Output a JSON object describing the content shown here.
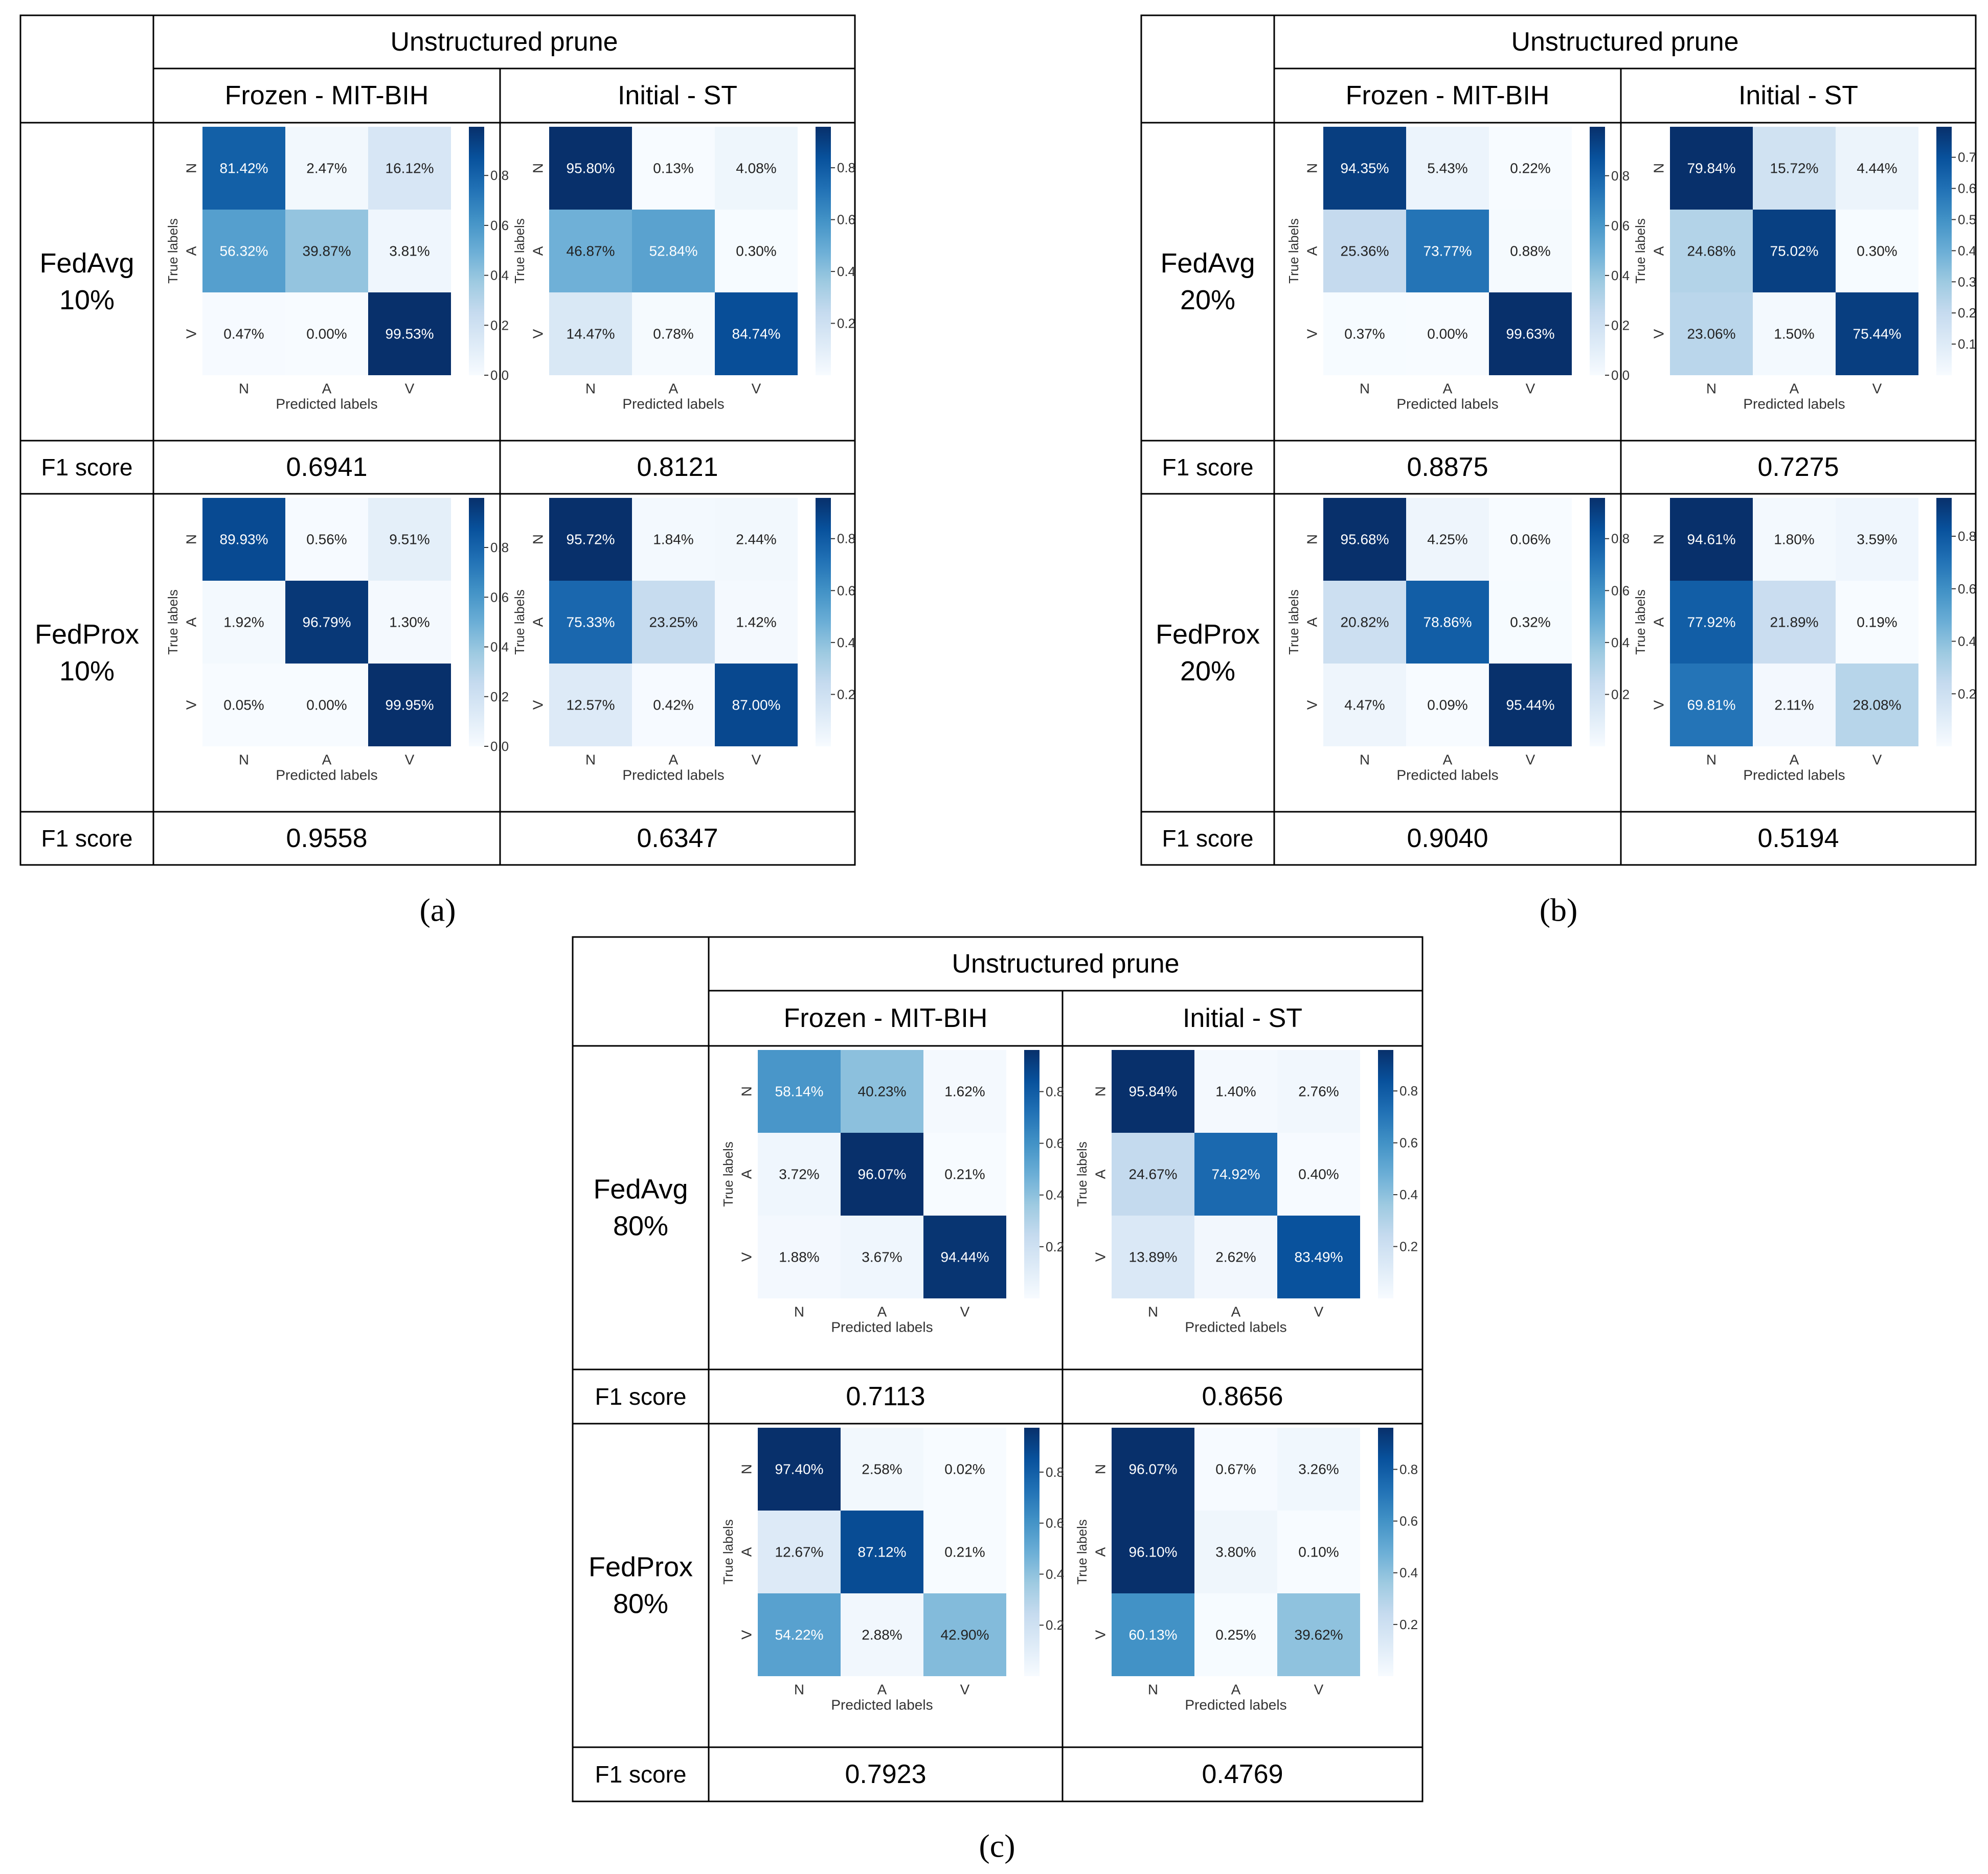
{
  "figure": {
    "panels": [
      {
        "tag": "(a)",
        "header": "Unstructured prune",
        "columns": [
          "Frozen - MIT-BIH",
          "Initial - ST"
        ],
        "f1_label": "F1 score",
        "rows": [
          {
            "label": [
              "FedAvg",
              "10%"
            ],
            "f1": [
              "0.6941",
              "0.8121"
            ]
          },
          {
            "label": [
              "FedProx",
              "10%"
            ],
            "f1": [
              "0.9558",
              "0.6347"
            ]
          }
        ]
      },
      {
        "tag": "(b)",
        "header": "Unstructured prune",
        "columns": [
          "Frozen - MIT-BIH",
          "Initial - ST"
        ],
        "f1_label": "F1 score",
        "rows": [
          {
            "label": [
              "FedAvg",
              "20%"
            ],
            "f1": [
              "0.8875",
              "0.7275"
            ]
          },
          {
            "label": [
              "FedProx",
              "20%"
            ],
            "f1": [
              "0.9040",
              "0.5194"
            ]
          }
        ]
      },
      {
        "tag": "(c)",
        "header": "Unstructured prune",
        "columns": [
          "Frozen - MIT-BIH",
          "Initial - ST"
        ],
        "f1_label": "F1 score",
        "rows": [
          {
            "label": [
              "FedAvg",
              "80%"
            ],
            "f1": [
              "0.7113",
              "0.8656"
            ]
          },
          {
            "label": [
              "FedProx",
              "80%"
            ],
            "f1": [
              "0.7923",
              "0.4769"
            ]
          }
        ]
      }
    ]
  },
  "chart_data": [
    {
      "type": "heatmap",
      "panel": "(a)",
      "model": "FedAvg 10%",
      "column": "Frozen - MIT-BIH",
      "xlabel": "Predicted labels",
      "ylabel": "True labels",
      "classes": [
        "N",
        "A",
        "V"
      ],
      "values": [
        [
          81.42,
          2.47,
          16.12
        ],
        [
          56.32,
          39.87,
          3.81
        ],
        [
          0.47,
          0.0,
          99.53
        ]
      ],
      "labels": [
        [
          "81.42%",
          "2.47%",
          "16.12%"
        ],
        [
          "56.32%",
          "39.87%",
          "3.81%"
        ],
        [
          "0.47%",
          "0.00%",
          "99.53%"
        ]
      ],
      "vmax": 0.995,
      "ticks": [
        0.0,
        0.2,
        0.4,
        0.6,
        0.8
      ],
      "tick_labels": [
        "0.0",
        "0.2",
        "0.4",
        "0.6",
        "0.8"
      ]
    },
    {
      "type": "heatmap",
      "panel": "(a)",
      "model": "FedAvg 10%",
      "column": "Initial - ST",
      "xlabel": "Predicted labels",
      "ylabel": "True labels",
      "classes": [
        "N",
        "A",
        "V"
      ],
      "values": [
        [
          95.8,
          0.13,
          4.08
        ],
        [
          46.87,
          52.84,
          0.3
        ],
        [
          14.47,
          0.78,
          84.74
        ]
      ],
      "labels": [
        [
          "95.80%",
          "0.13%",
          "4.08%"
        ],
        [
          "46.87%",
          "52.84%",
          "0.30%"
        ],
        [
          "14.47%",
          "0.78%",
          "84.74%"
        ]
      ],
      "vmax": 0.958,
      "ticks": [
        0.2,
        0.4,
        0.6,
        0.8
      ],
      "tick_labels": [
        "0.2",
        "0.4",
        "0.6",
        "0.8"
      ]
    },
    {
      "type": "heatmap",
      "panel": "(a)",
      "model": "FedProx 10%",
      "column": "Frozen - MIT-BIH",
      "xlabel": "Predicted labels",
      "ylabel": "True labels",
      "classes": [
        "N",
        "A",
        "V"
      ],
      "values": [
        [
          89.93,
          0.56,
          9.51
        ],
        [
          1.92,
          96.79,
          1.3
        ],
        [
          0.05,
          0.0,
          99.95
        ]
      ],
      "labels": [
        [
          "89.93%",
          "0.56%",
          "9.51%"
        ],
        [
          "1.92%",
          "96.79%",
          "1.30%"
        ],
        [
          "0.05%",
          "0.00%",
          "99.95%"
        ]
      ],
      "vmax": 0.9995,
      "ticks": [
        0.0,
        0.2,
        0.4,
        0.6,
        0.8
      ],
      "tick_labels": [
        "0.0",
        "0.2",
        "0.4",
        "0.6",
        "0.8"
      ]
    },
    {
      "type": "heatmap",
      "panel": "(a)",
      "model": "FedProx 10%",
      "column": "Initial - ST",
      "xlabel": "Predicted labels",
      "ylabel": "True labels",
      "classes": [
        "N",
        "A",
        "V"
      ],
      "values": [
        [
          95.72,
          1.84,
          2.44
        ],
        [
          75.33,
          23.25,
          1.42
        ],
        [
          12.57,
          0.42,
          87.0
        ]
      ],
      "labels": [
        [
          "95.72%",
          "1.84%",
          "2.44%"
        ],
        [
          "75.33%",
          "23.25%",
          "1.42%"
        ],
        [
          "12.57%",
          "0.42%",
          "87.00%"
        ]
      ],
      "vmax": 0.957,
      "ticks": [
        0.2,
        0.4,
        0.6,
        0.8
      ],
      "tick_labels": [
        "0.2",
        "0.4",
        "0.6",
        "0.8"
      ]
    },
    {
      "type": "heatmap",
      "panel": "(b)",
      "model": "FedAvg 20%",
      "column": "Frozen - MIT-BIH",
      "xlabel": "Predicted labels",
      "ylabel": "True labels",
      "classes": [
        "N",
        "A",
        "V"
      ],
      "values": [
        [
          94.35,
          5.43,
          0.22
        ],
        [
          25.36,
          73.77,
          0.88
        ],
        [
          0.37,
          0.0,
          99.63
        ]
      ],
      "labels": [
        [
          "94.35%",
          "5.43%",
          "0.22%"
        ],
        [
          "25.36%",
          "73.77%",
          "0.88%"
        ],
        [
          "0.37%",
          "0.00%",
          "99.63%"
        ]
      ],
      "vmax": 0.9963,
      "ticks": [
        0.0,
        0.2,
        0.4,
        0.6,
        0.8
      ],
      "tick_labels": [
        "0.0",
        "0.2",
        "0.4",
        "0.6",
        "0.8"
      ]
    },
    {
      "type": "heatmap",
      "panel": "(b)",
      "model": "FedAvg 20%",
      "column": "Initial - ST",
      "xlabel": "Predicted labels",
      "ylabel": "True labels",
      "classes": [
        "N",
        "A",
        "V"
      ],
      "values": [
        [
          79.84,
          15.72,
          4.44
        ],
        [
          24.68,
          75.02,
          0.3
        ],
        [
          23.06,
          1.5,
          75.44
        ]
      ],
      "labels": [
        [
          "79.84%",
          "15.72%",
          "4.44%"
        ],
        [
          "24.68%",
          "75.02%",
          "0.30%"
        ],
        [
          "23.06%",
          "1.50%",
          "75.44%"
        ]
      ],
      "vmax": 0.798,
      "ticks": [
        0.1,
        0.2,
        0.3,
        0.4,
        0.5,
        0.6,
        0.7
      ],
      "tick_labels": [
        "0.1",
        "0.2",
        "0.3",
        "0.4",
        "0.5",
        "0.6",
        "0.7"
      ]
    },
    {
      "type": "heatmap",
      "panel": "(b)",
      "model": "FedProx 20%",
      "column": "Frozen - MIT-BIH",
      "xlabel": "Predicted labels",
      "ylabel": "True labels",
      "classes": [
        "N",
        "A",
        "V"
      ],
      "values": [
        [
          95.68,
          4.25,
          0.06
        ],
        [
          20.82,
          78.86,
          0.32
        ],
        [
          4.47,
          0.09,
          95.44
        ]
      ],
      "labels": [
        [
          "95.68%",
          "4.25%",
          "0.06%"
        ],
        [
          "20.82%",
          "78.86%",
          "0.32%"
        ],
        [
          "4.47%",
          "0.09%",
          "95.44%"
        ]
      ],
      "vmax": 0.957,
      "ticks": [
        0.2,
        0.4,
        0.6,
        0.8
      ],
      "tick_labels": [
        "0.2",
        "0.4",
        "0.6",
        "0.8"
      ]
    },
    {
      "type": "heatmap",
      "panel": "(b)",
      "model": "FedProx 20%",
      "column": "Initial - ST",
      "xlabel": "Predicted labels",
      "ylabel": "True labels",
      "classes": [
        "N",
        "A",
        "V"
      ],
      "values": [
        [
          94.61,
          1.8,
          3.59
        ],
        [
          77.92,
          21.89,
          0.19
        ],
        [
          69.81,
          2.11,
          28.08
        ]
      ],
      "labels": [
        [
          "94.61%",
          "1.80%",
          "3.59%"
        ],
        [
          "77.92%",
          "21.89%",
          "0.19%"
        ],
        [
          "69.81%",
          "2.11%",
          "28.08%"
        ]
      ],
      "vmax": 0.946,
      "ticks": [
        0.2,
        0.4,
        0.6,
        0.8
      ],
      "tick_labels": [
        "0.2",
        "0.4",
        "0.6",
        "0.8"
      ]
    },
    {
      "type": "heatmap",
      "panel": "(c)",
      "model": "FedAvg 80%",
      "column": "Frozen - MIT-BIH",
      "xlabel": "Predicted labels",
      "ylabel": "True labels",
      "classes": [
        "N",
        "A",
        "V"
      ],
      "values": [
        [
          58.14,
          40.23,
          1.62
        ],
        [
          3.72,
          96.07,
          0.21
        ],
        [
          1.88,
          3.67,
          94.44
        ]
      ],
      "labels": [
        [
          "58.14%",
          "40.23%",
          "1.62%"
        ],
        [
          "3.72%",
          "96.07%",
          "0.21%"
        ],
        [
          "1.88%",
          "3.67%",
          "94.44%"
        ]
      ],
      "vmax": 0.961,
      "ticks": [
        0.2,
        0.4,
        0.6,
        0.8
      ],
      "tick_labels": [
        "0.2",
        "0.4",
        "0.6",
        "0.8"
      ]
    },
    {
      "type": "heatmap",
      "panel": "(c)",
      "model": "FedAvg 80%",
      "column": "Initial - ST",
      "xlabel": "Predicted labels",
      "ylabel": "True labels",
      "classes": [
        "N",
        "A",
        "V"
      ],
      "values": [
        [
          95.84,
          1.4,
          2.76
        ],
        [
          24.67,
          74.92,
          0.4
        ],
        [
          13.89,
          2.62,
          83.49
        ]
      ],
      "labels": [
        [
          "95.84%",
          "1.40%",
          "2.76%"
        ],
        [
          "24.67%",
          "74.92%",
          "0.40%"
        ],
        [
          "13.89%",
          "2.62%",
          "83.49%"
        ]
      ],
      "vmax": 0.958,
      "ticks": [
        0.2,
        0.4,
        0.6,
        0.8
      ],
      "tick_labels": [
        "0.2",
        "0.4",
        "0.6",
        "0.8"
      ]
    },
    {
      "type": "heatmap",
      "panel": "(c)",
      "model": "FedProx 80%",
      "column": "Frozen - MIT-BIH",
      "xlabel": "Predicted labels",
      "ylabel": "True labels",
      "classes": [
        "N",
        "A",
        "V"
      ],
      "values": [
        [
          97.4,
          2.58,
          0.02
        ],
        [
          12.67,
          87.12,
          0.21
        ],
        [
          54.22,
          2.88,
          42.9
        ]
      ],
      "labels": [
        [
          "97.40%",
          "2.58%",
          "0.02%"
        ],
        [
          "12.67%",
          "87.12%",
          "0.21%"
        ],
        [
          "54.22%",
          "2.88%",
          "42.90%"
        ]
      ],
      "vmax": 0.974,
      "ticks": [
        0.2,
        0.4,
        0.6,
        0.8
      ],
      "tick_labels": [
        "0.2",
        "0.4",
        "0.6",
        "0.8"
      ]
    },
    {
      "type": "heatmap",
      "panel": "(c)",
      "model": "FedProx 80%",
      "column": "Initial - ST",
      "xlabel": "Predicted labels",
      "ylabel": "True labels",
      "classes": [
        "N",
        "A",
        "V"
      ],
      "values": [
        [
          96.07,
          0.67,
          3.26
        ],
        [
          96.1,
          3.8,
          0.1
        ],
        [
          60.13,
          0.25,
          39.62
        ]
      ],
      "labels": [
        [
          "96.07%",
          "0.67%",
          "3.26%"
        ],
        [
          "96.10%",
          "3.80%",
          "0.10%"
        ],
        [
          "60.13%",
          "0.25%",
          "39.62%"
        ]
      ],
      "vmax": 0.961,
      "ticks": [
        0.2,
        0.4,
        0.6,
        0.8
      ],
      "tick_labels": [
        "0.2",
        "0.4",
        "0.6",
        "0.8"
      ]
    }
  ]
}
